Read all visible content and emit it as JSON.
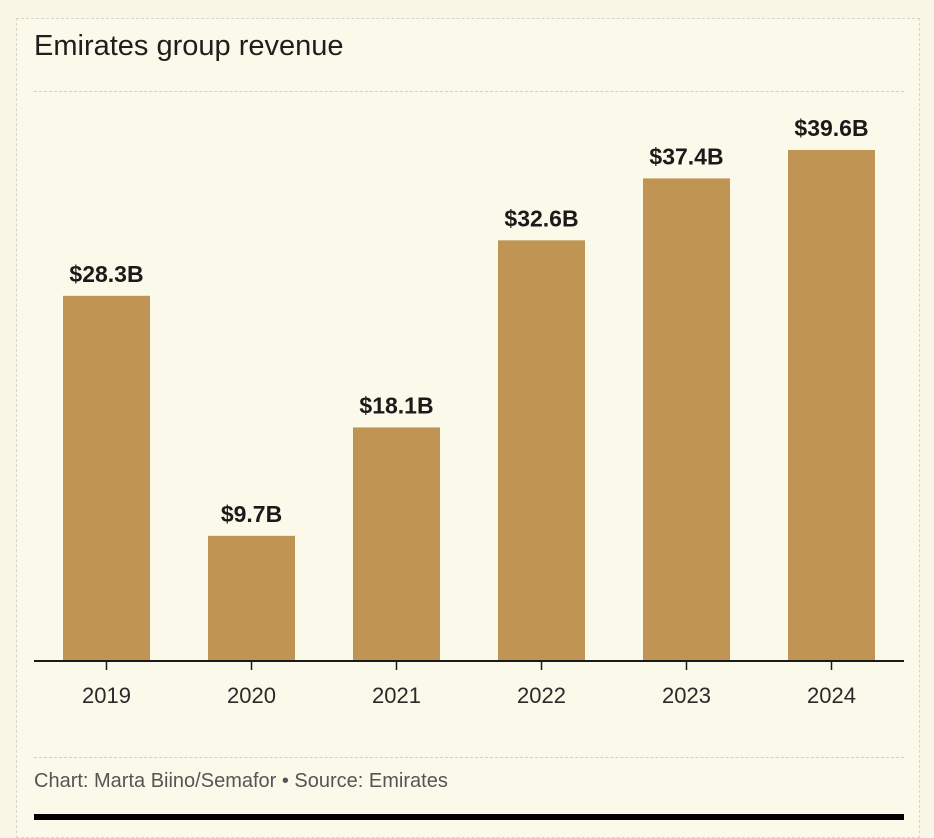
{
  "chart_data": {
    "type": "bar",
    "title": "Emirates group revenue",
    "categories": [
      "2019",
      "2020",
      "2021",
      "2022",
      "2023",
      "2024"
    ],
    "values": [
      28.3,
      9.7,
      18.1,
      32.6,
      37.4,
      39.6
    ],
    "value_labels": [
      "$28.3B",
      "$9.7B",
      "$18.1B",
      "$32.6B",
      "$37.4B",
      "$39.6B"
    ],
    "unit": "billion USD",
    "xlabel": "",
    "ylabel": "",
    "ylim": [
      0,
      39.6
    ],
    "grid": false,
    "bar_color": "#c09453"
  },
  "footer": {
    "credit": "Chart: Marta Biino/Semafor • Source: Emirates"
  }
}
